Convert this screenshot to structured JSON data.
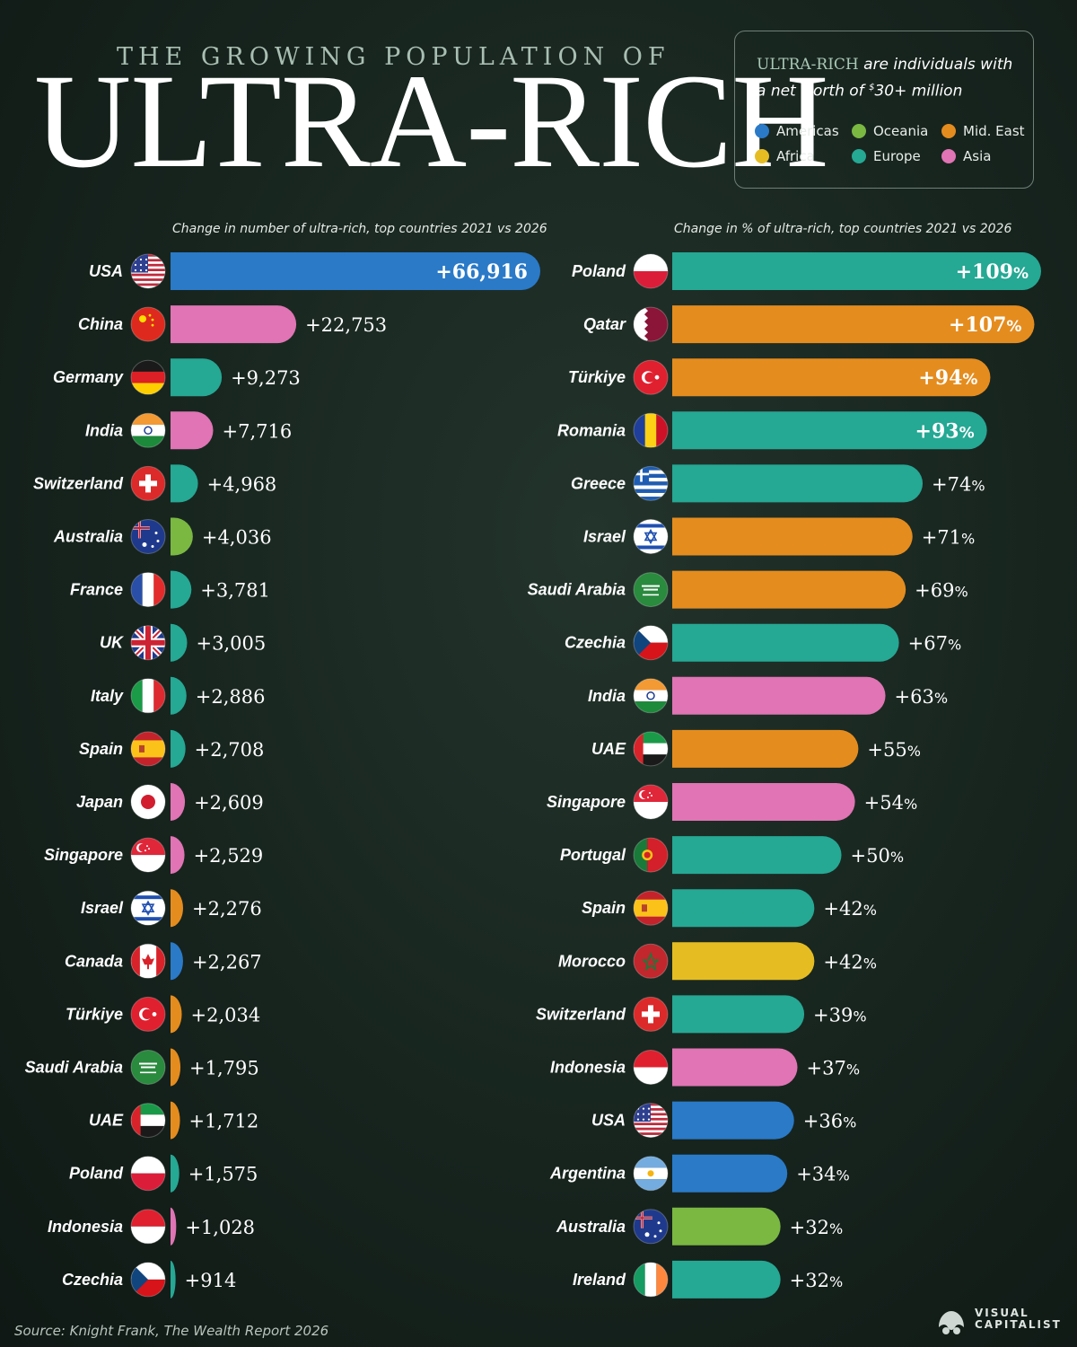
{
  "header": {
    "supertitle": "THE GROWING POPULATION OF",
    "title": "ULTRA-RICH"
  },
  "legend": {
    "term": "ULTRA-RICH",
    "definition_start": " are individuals with a net worth of ",
    "currency": "$",
    "threshold": "30+ million",
    "items": [
      {
        "label": "Americas",
        "color": "#2a7ac8"
      },
      {
        "label": "Oceania",
        "color": "#7ab842"
      },
      {
        "label": "Mid. East",
        "color": "#e58c1e"
      },
      {
        "label": "Africa",
        "color": "#e5bd23"
      },
      {
        "label": "Europe",
        "color": "#25a894"
      },
      {
        "label": "Asia",
        "color": "#e074b4"
      }
    ]
  },
  "source": "Source: Knight Frank, The Wealth Report 2026",
  "brand": {
    "line1": "VISUAL",
    "line2": "CAPITALIST"
  },
  "chart_data": [
    {
      "type": "bar",
      "orientation": "horizontal",
      "title": "Change in number of ultra-rich, top countries 2021 vs 2026",
      "categories": [
        "USA",
        "China",
        "Germany",
        "India",
        "Switzerland",
        "Australia",
        "France",
        "UK",
        "Italy",
        "Spain",
        "Japan",
        "Singapore",
        "Israel",
        "Canada",
        "Türkiye",
        "Saudi Arabia",
        "UAE",
        "Poland",
        "Indonesia",
        "Czechia"
      ],
      "values": [
        66916,
        22753,
        9273,
        7716,
        4968,
        4036,
        3781,
        3005,
        2886,
        2708,
        2609,
        2529,
        2276,
        2267,
        2034,
        1795,
        1712,
        1575,
        1028,
        914
      ],
      "labels": [
        "+66,916",
        "+22,753",
        "+9,273",
        "+7,716",
        "+4,968",
        "+4,036",
        "+3,781",
        "+3,005",
        "+2,886",
        "+2,708",
        "+2,609",
        "+2,529",
        "+2,276",
        "+2,267",
        "+2,034",
        "+1,795",
        "+1,712",
        "+1,575",
        "+1,028",
        "+914"
      ],
      "regions": [
        "Americas",
        "Asia",
        "Europe",
        "Asia",
        "Europe",
        "Oceania",
        "Europe",
        "Europe",
        "Europe",
        "Europe",
        "Asia",
        "Asia",
        "Mid. East",
        "Americas",
        "Mid. East",
        "Mid. East",
        "Mid. East",
        "Europe",
        "Asia",
        "Europe"
      ],
      "flags": [
        "usa",
        "china",
        "germany",
        "india",
        "switzerland",
        "australia",
        "france",
        "uk",
        "italy",
        "spain",
        "japan",
        "singapore",
        "israel",
        "canada",
        "turkiye",
        "saudi",
        "uae",
        "poland",
        "indonesia",
        "czechia"
      ],
      "xlim": [
        0,
        66916
      ]
    },
    {
      "type": "bar",
      "orientation": "horizontal",
      "title": "Change in % of ultra-rich, top countries 2021 vs 2026",
      "categories": [
        "Poland",
        "Qatar",
        "Türkiye",
        "Romania",
        "Greece",
        "Israel",
        "Saudi Arabia",
        "Czechia",
        "India",
        "UAE",
        "Singapore",
        "Portugal",
        "Spain",
        "Morocco",
        "Switzerland",
        "Indonesia",
        "USA",
        "Argentina",
        "Australia",
        "Ireland"
      ],
      "values": [
        109,
        107,
        94,
        93,
        74,
        71,
        69,
        67,
        63,
        55,
        54,
        50,
        42,
        42,
        39,
        37,
        36,
        34,
        32,
        32
      ],
      "labels": [
        "+109",
        "+107",
        "+94",
        "+93",
        "+74",
        "+71",
        "+69",
        "+67",
        "+63",
        "+55",
        "+54",
        "+50",
        "+42",
        "+42",
        "+39",
        "+37",
        "+36",
        "+34",
        "+32",
        "+32"
      ],
      "unit": "%",
      "regions": [
        "Europe",
        "Mid. East",
        "Mid. East",
        "Europe",
        "Europe",
        "Mid. East",
        "Mid. East",
        "Europe",
        "Asia",
        "Mid. East",
        "Asia",
        "Europe",
        "Europe",
        "Africa",
        "Europe",
        "Asia",
        "Americas",
        "Americas",
        "Oceania",
        "Europe"
      ],
      "flags": [
        "poland",
        "qatar",
        "turkiye",
        "romania",
        "greece",
        "israel",
        "saudi",
        "czechia",
        "india",
        "uae",
        "singapore",
        "portugal",
        "spain",
        "morocco",
        "switzerland",
        "indonesia",
        "usa",
        "argentina",
        "australia",
        "ireland"
      ],
      "xlim": [
        0,
        109
      ]
    }
  ]
}
